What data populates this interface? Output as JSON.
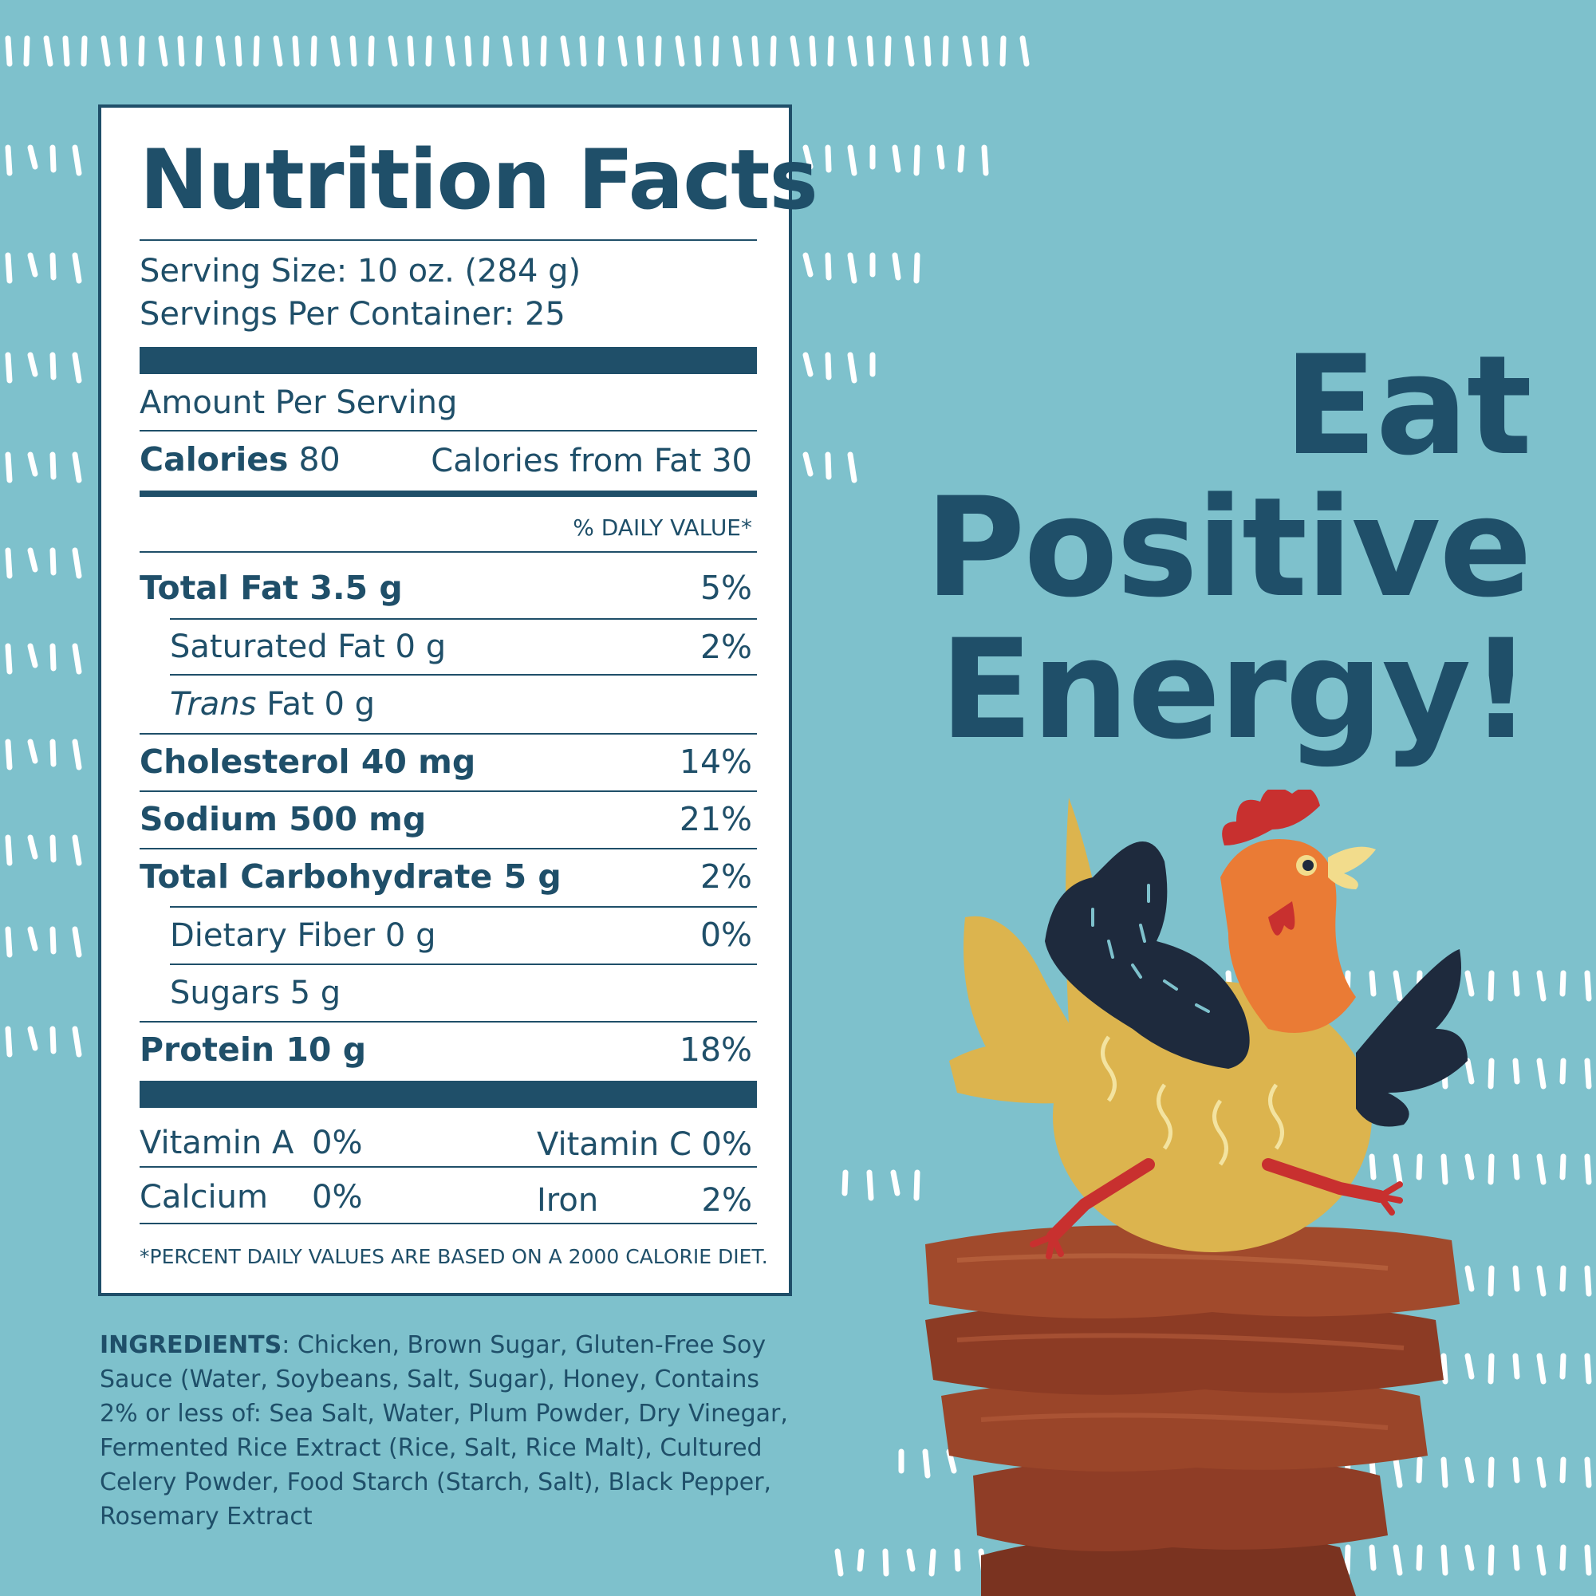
{
  "nutrition": {
    "title": "Nutrition Facts",
    "serving_size": "Serving Size: 10 oz. (284 g)",
    "servings_per_container": "Servings Per Container: 25",
    "amount_per_serving": "Amount Per Serving",
    "calories_label": "Calories",
    "calories_value": "80",
    "calories_from_fat": "Calories from Fat 30",
    "daily_value_header": "% DAILY VALUE*",
    "rows": [
      {
        "label": "Total Fat 3.5 g",
        "dv": "5%"
      },
      {
        "label": "Saturated Fat 0 g",
        "dv": "2%"
      },
      {
        "label_italic": "Trans",
        "label_rest": " Fat 0 g"
      },
      {
        "label": "Cholesterol 40 mg",
        "dv": "14%"
      },
      {
        "label": "Sodium 500 mg",
        "dv": "21%"
      },
      {
        "label": "Total Carbohydrate 5 g",
        "dv": "2%"
      },
      {
        "label": "Dietary Fiber 0 g",
        "dv": "0%"
      },
      {
        "label": "Sugars 5 g"
      },
      {
        "label": "Protein 10 g",
        "dv": "18%"
      }
    ],
    "vitamins": [
      {
        "label": "Vitamin A",
        "value": "0%"
      },
      {
        "label": "Vitamin C",
        "value": "0%"
      },
      {
        "label": "Calcium",
        "value": "0%"
      },
      {
        "label": "Iron",
        "value": "2%"
      }
    ],
    "footnote": "*PERCENT DAILY VALUES ARE BASED ON A 2000 CALORIE DIET."
  },
  "ingredients": {
    "label": "INGREDIENTS",
    "text": ": Chicken, Brown Sugar, Gluten-Free Soy Sauce (Water, Soybeans, Salt, Sugar), Honey, Contains 2% or less of: Sea Salt, Water, Plum Powder, Dry Vinegar, Fermented Rice Extract (Rice, Salt, Rice Malt), Cultured Celery Powder, Food Starch (Starch, Salt), Black Pepper, Rosemary Extract"
  },
  "headline": {
    "line1": "Eat",
    "line2": "Positive",
    "line3": "Energy!"
  },
  "colors": {
    "background": "#7ec1cc",
    "navy": "#1f4f69",
    "panel": "#ffffff",
    "hen_body": "#dcb44e",
    "hen_wing": "#1e2a3d",
    "hen_head": "#ea7b35",
    "comb": "#c8302f",
    "jerky": "#8a3a25"
  },
  "illustration": {
    "icons": [
      "hen-illustration-icon",
      "jerky-stack-icon",
      "dash-pattern-icon"
    ]
  }
}
